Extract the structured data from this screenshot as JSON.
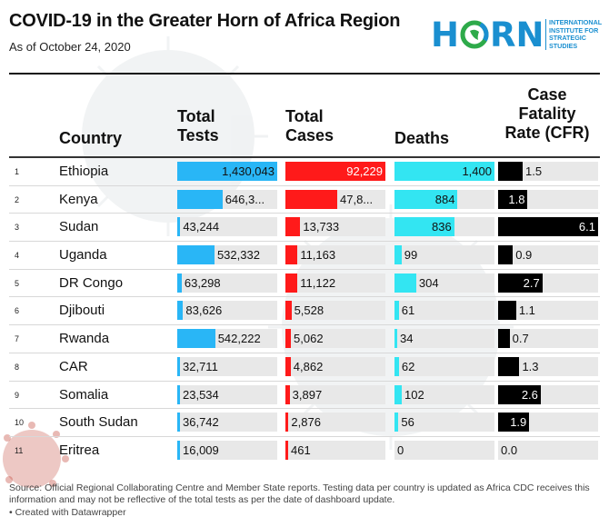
{
  "header": {
    "title": "COVID-19 in the Greater Horn of Africa Region",
    "subtitle": "As of October 24, 2020"
  },
  "logo": {
    "word_left": "H",
    "word_right": "RN",
    "tagline": [
      "INTERNATIONAL",
      "INSTITUTE FOR",
      "STRATEGIC",
      "STUDIES"
    ],
    "color": "#1a8fd0",
    "ring_color": "#2eaa4a"
  },
  "columns": {
    "country": "Country",
    "tests": [
      "Total",
      "Tests"
    ],
    "cases": [
      "Total",
      "Cases"
    ],
    "deaths": [
      "Deaths"
    ],
    "cfr": [
      "Case",
      "Fatality",
      "Rate (CFR)"
    ]
  },
  "colors": {
    "tests": "#29b6f6",
    "cases": "#ff1a1a",
    "deaths": "#33e5f2",
    "cfr": "#000000",
    "track": "#e8e8e8"
  },
  "chart_data": {
    "type": "table",
    "title": "COVID-19 in the Greater Horn of Africa Region",
    "subtitle": "As of October 24, 2020",
    "rows": [
      {
        "rank": "1",
        "country": "Ethiopia",
        "tests": 1430043,
        "tests_label": "1,430,043",
        "cases": 92229,
        "cases_label": "92,229",
        "deaths": 1400,
        "deaths_label": "1,400",
        "cfr": 1.5,
        "cfr_label": "1.5"
      },
      {
        "rank": "2",
        "country": "Kenya",
        "tests": 646300,
        "tests_label": "646,3...",
        "cases": 47800,
        "cases_label": "47,8...",
        "deaths": 884,
        "deaths_label": "884",
        "cfr": 1.8,
        "cfr_label": "1.8"
      },
      {
        "rank": "3",
        "country": "Sudan",
        "tests": 43244,
        "tests_label": "43,244",
        "cases": 13733,
        "cases_label": "13,733",
        "deaths": 836,
        "deaths_label": "836",
        "cfr": 6.1,
        "cfr_label": "6.1"
      },
      {
        "rank": "4",
        "country": "Uganda",
        "tests": 532332,
        "tests_label": "532,332",
        "cases": 11163,
        "cases_label": "11,163",
        "deaths": 99,
        "deaths_label": "99",
        "cfr": 0.9,
        "cfr_label": "0.9"
      },
      {
        "rank": "5",
        "country": "DR Congo",
        "tests": 63298,
        "tests_label": "63,298",
        "cases": 11122,
        "cases_label": "11,122",
        "deaths": 304,
        "deaths_label": "304",
        "cfr": 2.7,
        "cfr_label": "2.7"
      },
      {
        "rank": "6",
        "country": "Djibouti",
        "tests": 83626,
        "tests_label": "83,626",
        "cases": 5528,
        "cases_label": "5,528",
        "deaths": 61,
        "deaths_label": "61",
        "cfr": 1.1,
        "cfr_label": "1.1"
      },
      {
        "rank": "7",
        "country": "Rwanda",
        "tests": 542222,
        "tests_label": "542,222",
        "cases": 5062,
        "cases_label": "5,062",
        "deaths": 34,
        "deaths_label": "34",
        "cfr": 0.7,
        "cfr_label": "0.7"
      },
      {
        "rank": "8",
        "country": "CAR",
        "tests": 32711,
        "tests_label": "32,711",
        "cases": 4862,
        "cases_label": "4,862",
        "deaths": 62,
        "deaths_label": "62",
        "cfr": 1.3,
        "cfr_label": "1.3"
      },
      {
        "rank": "9",
        "country": "Somalia",
        "tests": 23534,
        "tests_label": "23,534",
        "cases": 3897,
        "cases_label": "3,897",
        "deaths": 102,
        "deaths_label": "102",
        "cfr": 2.6,
        "cfr_label": "2.6"
      },
      {
        "rank": "10",
        "country": "South Sudan",
        "tests": 36742,
        "tests_label": "36,742",
        "cases": 2876,
        "cases_label": "2,876",
        "deaths": 56,
        "deaths_label": "56",
        "cfr": 1.9,
        "cfr_label": "1.9"
      },
      {
        "rank": "11",
        "country": "Eritrea",
        "tests": 16009,
        "tests_label": "16,009",
        "cases": 461,
        "cases_label": "461",
        "deaths": 0,
        "deaths_label": "0",
        "cfr": 0.0,
        "cfr_label": "0.0"
      }
    ]
  },
  "footer": {
    "source": "Source: Official Regional Collaborating Centre and Member State reports. Testing data per country is updated as Africa CDC receives this information and may not be reflective of the total tests as per the date of dashboard update.",
    "credit": "• Created with Datawrapper"
  }
}
